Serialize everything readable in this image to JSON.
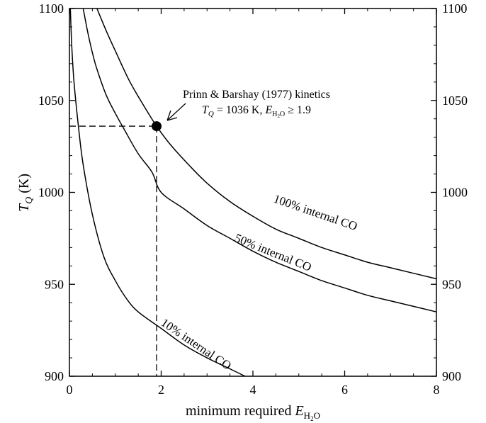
{
  "chart_data": {
    "type": "line",
    "title": "",
    "xlabel": {
      "prefix": "minimum required ",
      "symbol": "E",
      "subscript_h": "H",
      "subscript_2": "2",
      "subscript_o": "O"
    },
    "ylabel": {
      "symbol": "T",
      "subscript": "Q",
      "unit": " (K)"
    },
    "xlim": [
      0,
      8
    ],
    "ylim": [
      900,
      1100
    ],
    "x_ticks": [
      "0",
      "2",
      "4",
      "6",
      "8"
    ],
    "y_ticks": [
      "900",
      "950",
      "1000",
      "1050",
      "1100"
    ],
    "right_y_ticks": [
      "900",
      "950",
      "1000",
      "1050",
      "1100"
    ],
    "grid": false,
    "series": [
      {
        "name": "100% internal CO",
        "x": [
          0.6,
          0.8,
          1.0,
          1.3,
          1.6,
          1.9,
          2.2,
          2.6,
          3.0,
          3.5,
          4.0,
          4.5,
          5.0,
          5.5,
          6.0,
          6.5,
          7.0,
          7.5,
          8.0
        ],
        "y": [
          1100,
          1088,
          1077,
          1061,
          1048,
          1036,
          1026,
          1015,
          1005,
          995,
          987,
          980,
          975,
          970,
          966,
          962,
          959,
          956,
          953
        ]
      },
      {
        "name": "50% internal CO",
        "x": [
          0.3,
          0.4,
          0.5,
          0.6,
          0.8,
          1.0,
          1.2,
          1.5,
          1.8,
          2.0,
          2.5,
          3.0,
          3.5,
          4.0,
          4.5,
          5.0,
          5.5,
          6.0,
          6.5,
          7.0,
          7.5,
          8.0
        ],
        "y": [
          1100,
          1087,
          1076,
          1067,
          1053,
          1043,
          1034,
          1021,
          1011,
          1000,
          991,
          982,
          975,
          968,
          962,
          957,
          952,
          948,
          944,
          941,
          938,
          935
        ]
      },
      {
        "name": "10% internal CO",
        "x": [
          0.02,
          0.05,
          0.1,
          0.2,
          0.3,
          0.5,
          0.75,
          1.0,
          1.25,
          1.5,
          2.0,
          2.5,
          3.0,
          3.5,
          3.83
        ],
        "y": [
          1100,
          1080,
          1060,
          1035,
          1015,
          988,
          965,
          952,
          942,
          935,
          926,
          917,
          910,
          904,
          900
        ]
      }
    ],
    "highlight_point": {
      "x": 1.9,
      "y": 1036
    },
    "annotation": {
      "line1": "Prinn & Barshay (1977) kinetics",
      "line2_t": "T",
      "line2_q": "Q",
      "line2_val": " = 1036 K, ",
      "line2_e": "E",
      "line2_sub_h": "H",
      "line2_sub_2": "2",
      "line2_sub_o": "O",
      "line2_end": " ≥ 1.9"
    },
    "curve_labels": [
      "100% internal CO",
      "50% internal CO",
      "10% internal CO"
    ]
  }
}
